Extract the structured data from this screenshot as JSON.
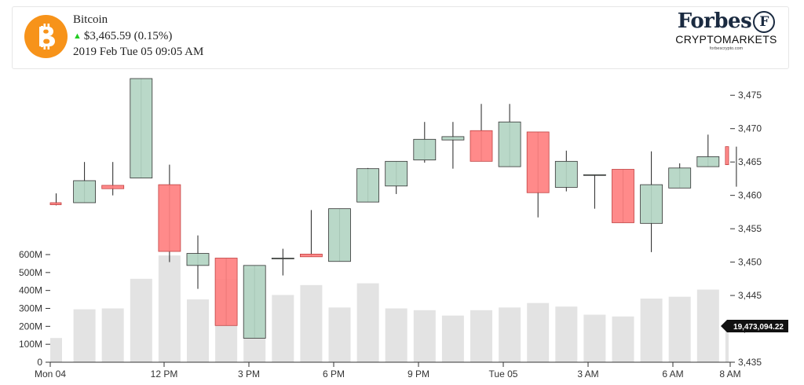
{
  "header": {
    "coin_name": "Bitcoin",
    "price_text": "$3,465.59 (0.15%)",
    "change_direction": "up",
    "datetime_text": "2019 Feb Tue 05 09:05 AM",
    "logo_icon": "bitcoin-icon",
    "logo_color": "#f7931a"
  },
  "brand": {
    "name": "Forbes",
    "mark": "F",
    "subtitle": "CRYPTOMARKETS",
    "url": "forbescrypto.com"
  },
  "chart_data": {
    "type": "candlestick",
    "colors": {
      "up": "#b3d5c3",
      "down": "#ff8080",
      "volume": "#e3e3e3",
      "edge": "#333333"
    },
    "x_ticks": [
      "Mon 04",
      "12 PM",
      "3 PM",
      "6 PM",
      "9 PM",
      "Tue 05",
      "3 AM",
      "6 AM",
      "8 AM"
    ],
    "price_axis": {
      "side": "right",
      "range": [
        3435,
        3477.5
      ],
      "ticks": [
        3435,
        3440,
        3445,
        3450,
        3455,
        3460,
        3465,
        3470,
        3475
      ],
      "tick_labels": [
        "3,435",
        "3,440",
        "3,445",
        "3,450",
        "3,455",
        "3,460",
        "3,465",
        "3,470",
        "3,475"
      ]
    },
    "volume_axis": {
      "side": "left",
      "range": [
        0,
        600000000
      ],
      "ticks": [
        0,
        100000000,
        200000000,
        300000000,
        400000000,
        500000000,
        600000000
      ],
      "tick_labels": [
        "0",
        "100M",
        "200M",
        "300M",
        "400M",
        "500M",
        "600M"
      ]
    },
    "last_volume_label": "19,473,094.22",
    "candles": [
      {
        "open": 3458.9,
        "high": 3460.3,
        "low": 3458.5,
        "close": 3458.6,
        "volume": 135000000
      },
      {
        "open": 3458.9,
        "high": 3465.0,
        "low": 3458.9,
        "close": 3462.2,
        "volume": 295000000
      },
      {
        "open": 3461.5,
        "high": 3465.0,
        "low": 3460.0,
        "close": 3461.0,
        "volume": 300000000
      },
      {
        "open": 3462.6,
        "high": 3477.5,
        "low": 3462.6,
        "close": 3477.5,
        "volume": 465000000
      },
      {
        "open": 3461.6,
        "high": 3464.6,
        "low": 3450.0,
        "close": 3451.6,
        "volume": 595000000
      },
      {
        "open": 3449.5,
        "high": 3454.0,
        "low": 3446.0,
        "close": 3451.3,
        "volume": 350000000
      },
      {
        "open": 3450.6,
        "high": 3450.6,
        "low": 3440.5,
        "close": 3440.5,
        "volume": 465000000
      },
      {
        "open": 3438.6,
        "high": 3449.5,
        "low": 3438.6,
        "close": 3449.5,
        "volume": 520000000
      },
      {
        "open": 3450.5,
        "high": 3452.0,
        "low": 3448.0,
        "close": 3450.6,
        "volume": 375000000
      },
      {
        "open": 3451.2,
        "high": 3457.8,
        "low": 3450.8,
        "close": 3450.8,
        "volume": 430000000
      },
      {
        "open": 3450.1,
        "high": 3458.0,
        "low": 3450.1,
        "close": 3458.0,
        "volume": 305000000
      },
      {
        "open": 3459.0,
        "high": 3464.1,
        "low": 3459.0,
        "close": 3464.0,
        "volume": 440000000
      },
      {
        "open": 3461.4,
        "high": 3465.1,
        "low": 3460.2,
        "close": 3465.1,
        "volume": 300000000
      },
      {
        "open": 3465.3,
        "high": 3471.0,
        "low": 3464.9,
        "close": 3468.4,
        "volume": 290000000
      },
      {
        "open": 3468.3,
        "high": 3471.0,
        "low": 3464.0,
        "close": 3468.8,
        "volume": 260000000
      },
      {
        "open": 3469.7,
        "high": 3473.7,
        "low": 3465.1,
        "close": 3465.1,
        "volume": 290000000
      },
      {
        "open": 3464.3,
        "high": 3473.7,
        "low": 3464.3,
        "close": 3471.0,
        "volume": 305000000
      },
      {
        "open": 3469.5,
        "high": 3469.5,
        "low": 3456.7,
        "close": 3460.4,
        "volume": 330000000
      },
      {
        "open": 3461.2,
        "high": 3466.7,
        "low": 3460.6,
        "close": 3465.1,
        "volume": 310000000
      },
      {
        "open": 3463.1,
        "high": 3463.1,
        "low": 3458.0,
        "close": 3463.1,
        "volume": 265000000
      },
      {
        "open": 3463.9,
        "high": 3463.9,
        "low": 3455.9,
        "close": 3455.9,
        "volume": 255000000
      },
      {
        "open": 3455.8,
        "high": 3466.6,
        "low": 3451.5,
        "close": 3461.6,
        "volume": 355000000
      },
      {
        "open": 3461.1,
        "high": 3464.8,
        "low": 3461.1,
        "close": 3464.1,
        "volume": 365000000
      },
      {
        "open": 3464.3,
        "high": 3469.1,
        "low": 3464.3,
        "close": 3465.8,
        "volume": 405000000
      },
      {
        "open": 3467.3,
        "high": 3467.3,
        "low": 3461.3,
        "close": 3464.6,
        "volume": 195000000
      }
    ]
  }
}
